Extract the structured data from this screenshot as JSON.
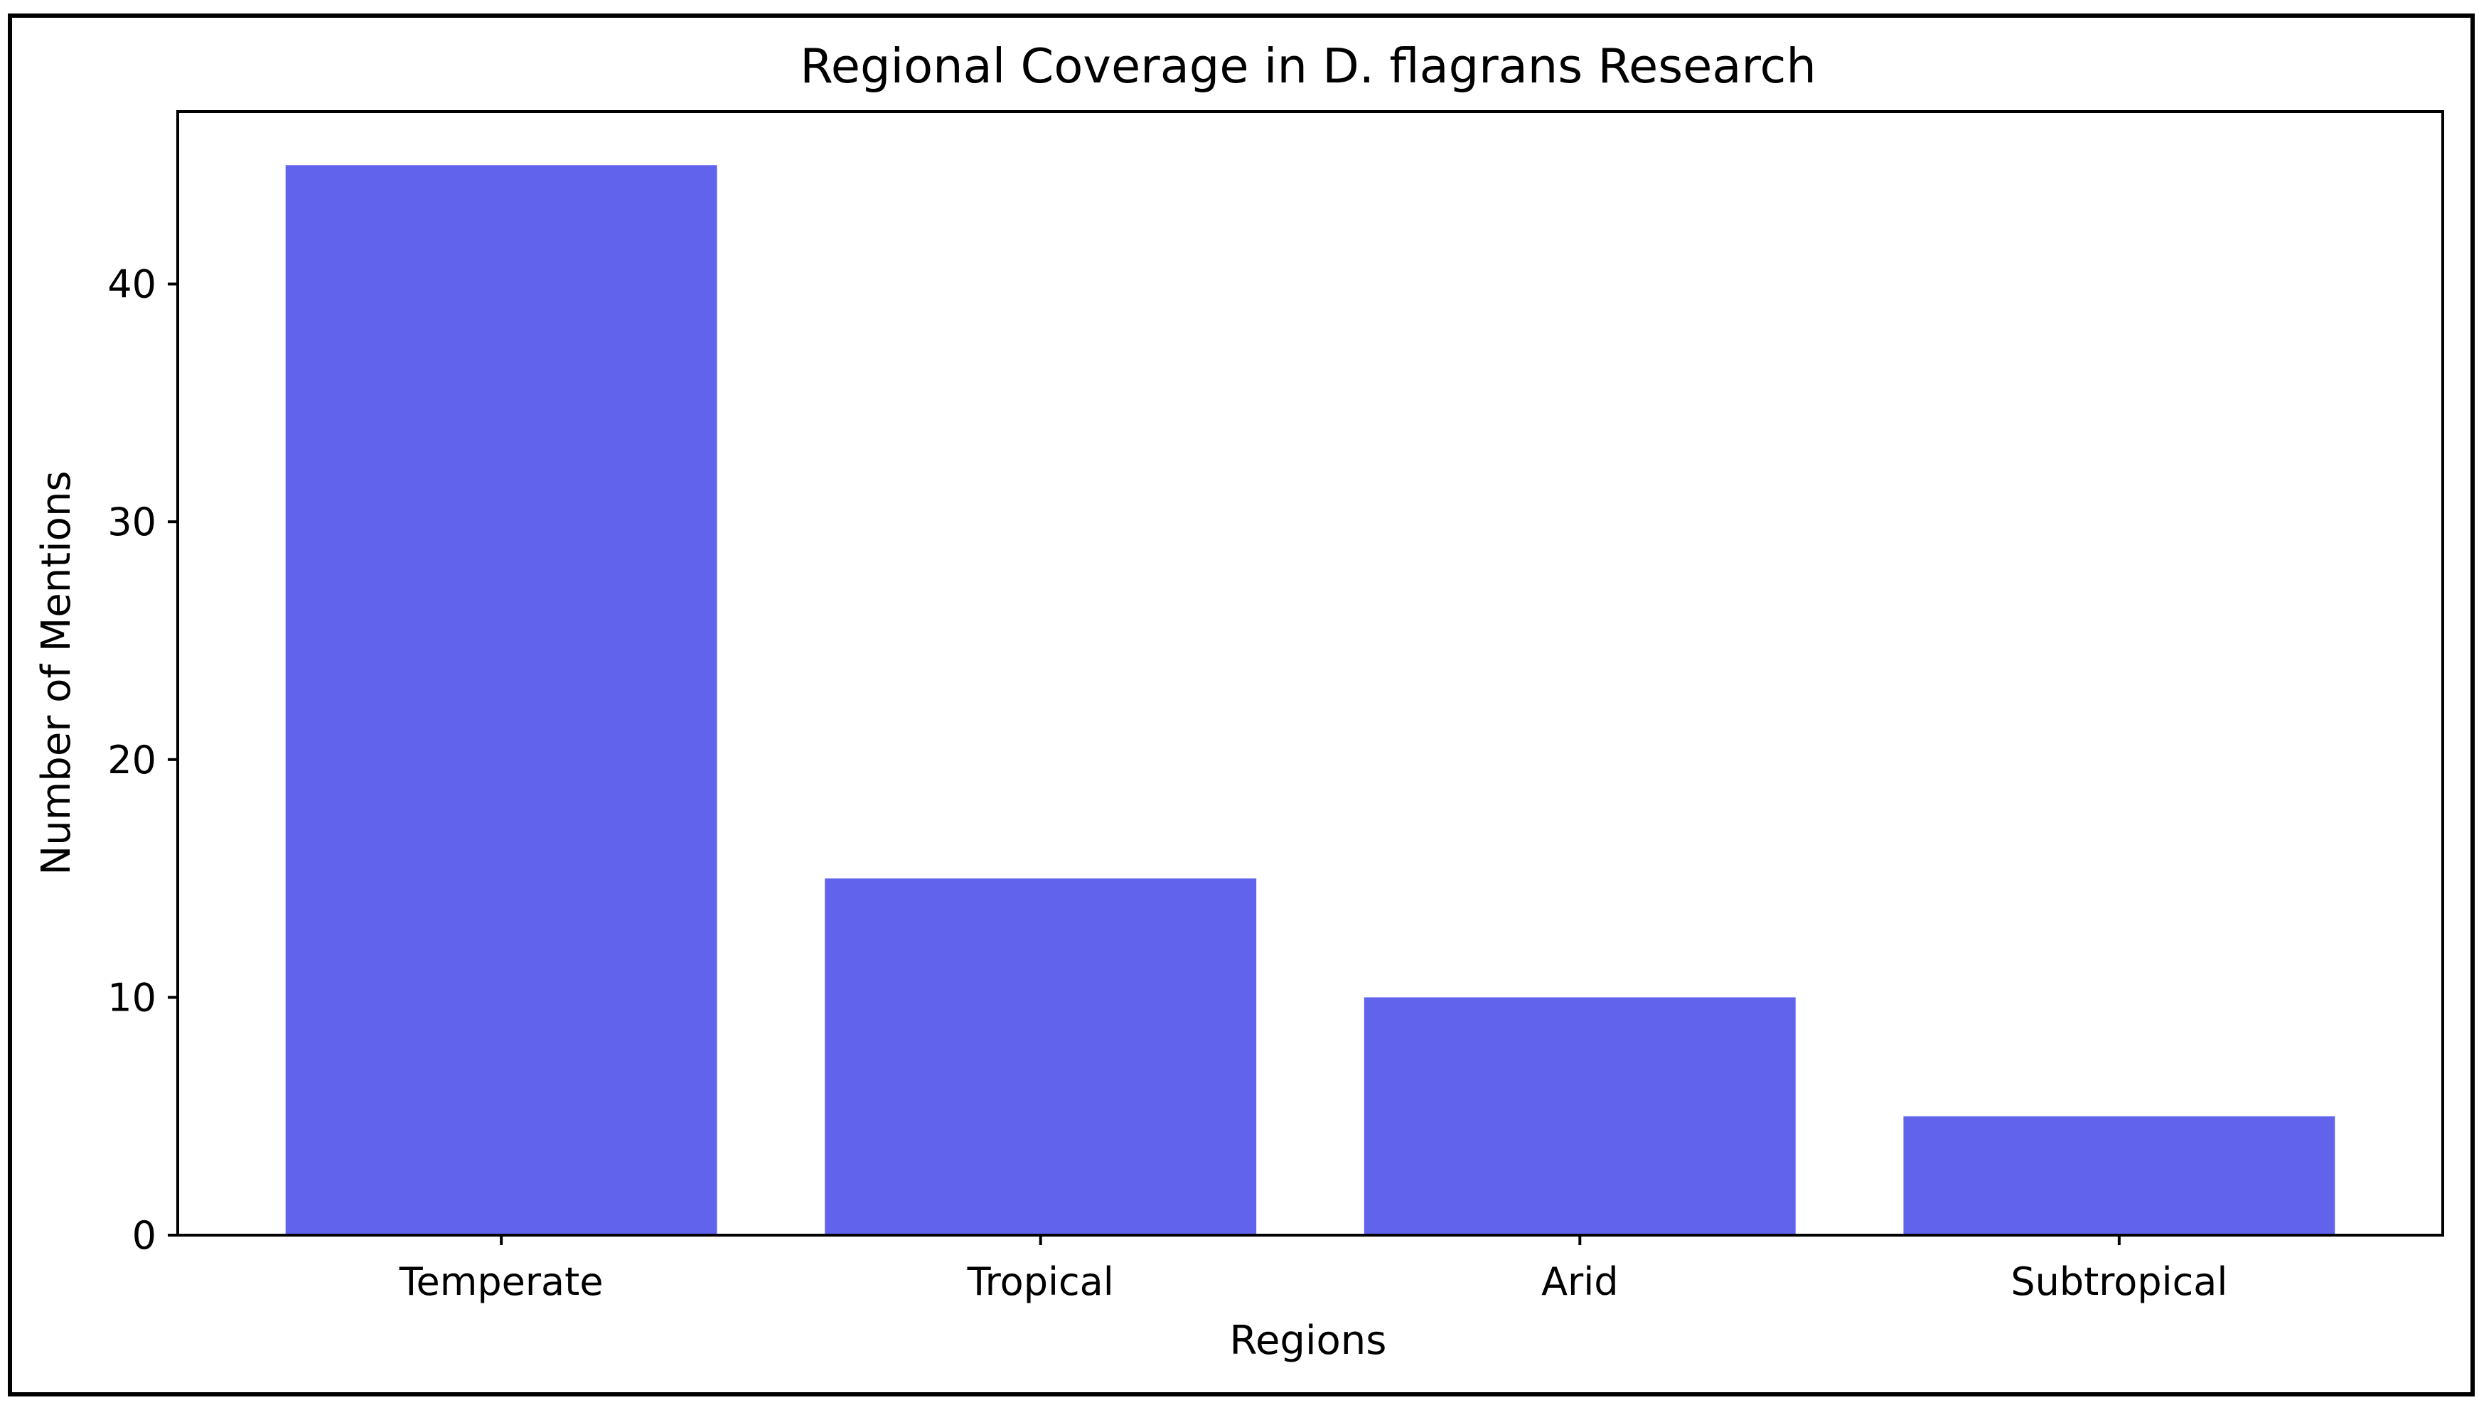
{
  "colors": {
    "bar": "#6263EC",
    "axis": "#000000",
    "frame": "#000000",
    "background": "#FFFFFF"
  },
  "chart_data": {
    "type": "bar",
    "title": "Regional Coverage in D. flagrans Research",
    "xlabel": "Regions",
    "ylabel": "Number of Mentions",
    "categories": [
      "Temperate",
      "Tropical",
      "Arid",
      "Subtropical"
    ],
    "values": [
      45,
      15,
      10,
      5
    ],
    "ylim": [
      0,
      47.25
    ],
    "yticks": [
      0,
      10,
      20,
      30,
      40
    ],
    "grid": false,
    "legend": "none"
  }
}
